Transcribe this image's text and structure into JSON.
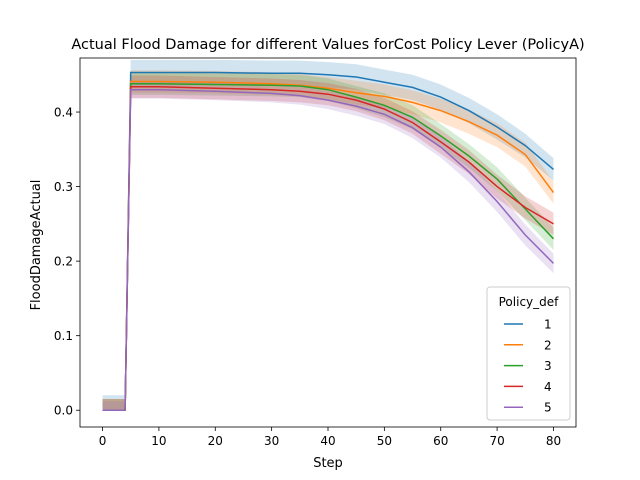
{
  "chart_data": {
    "type": "line",
    "title": "Actual Flood Damage for different Values forCost Policy Lever (PolicyA)",
    "xlabel": "Step",
    "ylabel": "FloodDamageActual",
    "xlim": [
      -4,
      84
    ],
    "ylim": [
      -0.0225,
      0.4725
    ],
    "xticks": [
      0,
      10,
      20,
      30,
      40,
      50,
      60,
      70,
      80
    ],
    "yticks": [
      0.0,
      0.1,
      0.2,
      0.3,
      0.4
    ],
    "yticklabels": [
      "0.0",
      "0.1",
      "0.2",
      "0.3",
      "0.4"
    ],
    "legend": {
      "title": "Policy_def",
      "placement": "lower-right"
    },
    "x": [
      0,
      4,
      5,
      10,
      20,
      30,
      35,
      40,
      45,
      50,
      55,
      60,
      65,
      70,
      75,
      80
    ],
    "series": [
      {
        "name": "1",
        "color": "#1f77b4",
        "values": [
          0,
          0,
          0.453,
          0.453,
          0.453,
          0.452,
          0.452,
          0.45,
          0.447,
          0.44,
          0.433,
          0.42,
          0.402,
          0.38,
          0.355,
          0.323
        ],
        "band": [
          0.02,
          0.02,
          0.017,
          0.017,
          0.017,
          0.017,
          0.017,
          0.017,
          0.017,
          0.017,
          0.017,
          0.017,
          0.017,
          0.017,
          0.016,
          0.015
        ]
      },
      {
        "name": "2",
        "color": "#ff7f0e",
        "values": [
          0,
          0,
          0.441,
          0.441,
          0.44,
          0.438,
          0.436,
          0.432,
          0.426,
          0.421,
          0.413,
          0.402,
          0.387,
          0.369,
          0.343,
          0.292
        ],
        "band": [
          0.015,
          0.015,
          0.015,
          0.015,
          0.015,
          0.015,
          0.015,
          0.015,
          0.016,
          0.016,
          0.016,
          0.016,
          0.016,
          0.016,
          0.016,
          0.015
        ]
      },
      {
        "name": "3",
        "color": "#2ca02c",
        "values": [
          0,
          0,
          0.438,
          0.438,
          0.437,
          0.436,
          0.435,
          0.43,
          0.42,
          0.409,
          0.393,
          0.368,
          0.341,
          0.31,
          0.27,
          0.23
        ],
        "band": [
          0.015,
          0.015,
          0.015,
          0.015,
          0.015,
          0.015,
          0.015,
          0.015,
          0.015,
          0.016,
          0.016,
          0.016,
          0.016,
          0.016,
          0.015,
          0.015
        ]
      },
      {
        "name": "4",
        "color": "#d62728",
        "values": [
          0,
          0,
          0.434,
          0.434,
          0.432,
          0.43,
          0.428,
          0.424,
          0.416,
          0.404,
          0.386,
          0.36,
          0.333,
          0.3,
          0.272,
          0.25
        ],
        "band": [
          0.015,
          0.015,
          0.015,
          0.015,
          0.015,
          0.015,
          0.015,
          0.015,
          0.015,
          0.015,
          0.015,
          0.016,
          0.016,
          0.016,
          0.015,
          0.015
        ]
      },
      {
        "name": "5",
        "color": "#9467bd",
        "values": [
          0,
          0,
          0.43,
          0.43,
          0.428,
          0.425,
          0.422,
          0.416,
          0.408,
          0.397,
          0.379,
          0.353,
          0.32,
          0.28,
          0.235,
          0.197
        ],
        "band": [
          0.012,
          0.012,
          0.012,
          0.012,
          0.012,
          0.012,
          0.012,
          0.012,
          0.013,
          0.013,
          0.014,
          0.014,
          0.014,
          0.014,
          0.014,
          0.013
        ]
      }
    ]
  }
}
